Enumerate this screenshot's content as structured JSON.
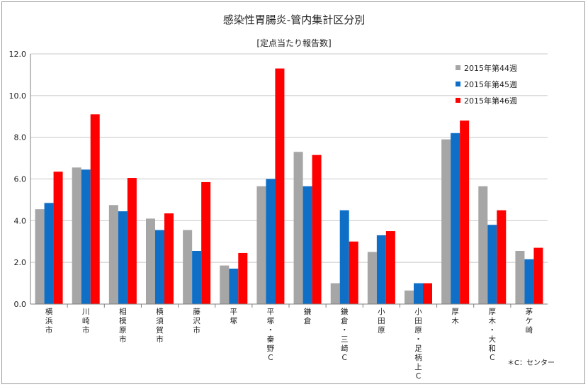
{
  "chart_data": {
    "type": "bar",
    "title": "感染性胃腸炎-管内集計区分別",
    "subtitle": "[定点当たり報告数]",
    "xlabel": "",
    "ylabel": "",
    "ylim": [
      0,
      12
    ],
    "yticks": [
      "0.0",
      "2.0",
      "4.0",
      "6.0",
      "8.0",
      "10.0",
      "12.0"
    ],
    "grid": true,
    "legend_position": "top-right",
    "categories": [
      "横浜市",
      "川崎市",
      "相模原市",
      "横須賀市",
      "藤沢市",
      "平塚",
      "平塚・秦野C",
      "鎌倉",
      "鎌倉・三崎C",
      "小田原",
      "小田原・足柄上C",
      "厚木",
      "厚木・大和C",
      "茅ケ崎"
    ],
    "series": [
      {
        "name": "2015年第44週",
        "color": "#a6a6a6",
        "values": [
          4.55,
          6.55,
          4.75,
          4.1,
          3.55,
          1.85,
          5.65,
          7.3,
          1.0,
          2.5,
          0.65,
          7.9,
          5.65,
          2.55
        ]
      },
      {
        "name": "2015年第45週",
        "color": "#0f6fc6",
        "values": [
          4.85,
          6.45,
          4.45,
          3.55,
          2.55,
          1.7,
          6.0,
          5.65,
          4.5,
          3.3,
          1.0,
          8.2,
          3.8,
          2.15
        ]
      },
      {
        "name": "2015年第46週",
        "color": "#ff0000",
        "values": [
          6.35,
          9.1,
          6.05,
          4.35,
          5.85,
          2.45,
          11.3,
          7.15,
          3.0,
          3.5,
          1.0,
          8.8,
          4.5,
          2.7
        ]
      }
    ]
  },
  "note": "＊C：センター"
}
